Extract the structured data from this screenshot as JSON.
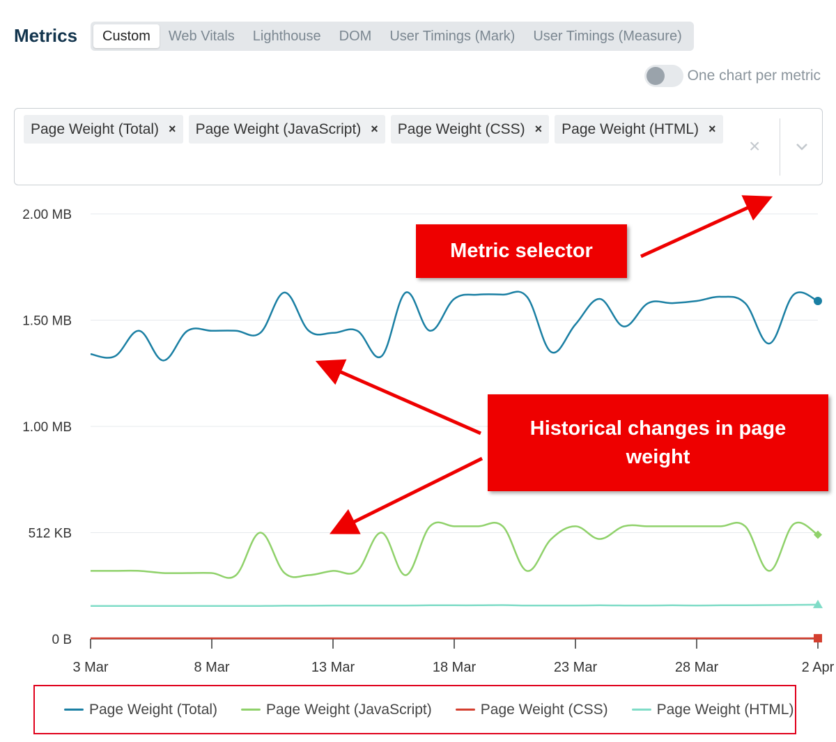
{
  "header": {
    "title": "Metrics",
    "tabs": [
      "Custom",
      "Web Vitals",
      "Lighthouse",
      "DOM",
      "User Timings (Mark)",
      "User Timings (Measure)"
    ],
    "active_tab": "Custom"
  },
  "toggle": {
    "label": "One chart per metric",
    "on": false
  },
  "selector": {
    "chips": [
      "Page Weight (Total)",
      "Page Weight (JavaScript)",
      "Page Weight (CSS)",
      "Page Weight (HTML)"
    ],
    "remove_glyph": "×",
    "clear_glyph": "×"
  },
  "annotations": {
    "metric_selector": "Metric selector",
    "history": "Historical changes in page weight"
  },
  "chart_data": {
    "type": "line",
    "ylim": [
      0,
      2
    ],
    "y_unit": "MB",
    "yticks": [
      {
        "value": 0,
        "label": "0 B"
      },
      {
        "value": 0.5,
        "label": "512 KB"
      },
      {
        "value": 1.0,
        "label": "1.00 MB"
      },
      {
        "value": 1.5,
        "label": "1.50 MB"
      },
      {
        "value": 2.0,
        "label": "2.00 MB"
      }
    ],
    "xticks": [
      "3 Mar",
      "8 Mar",
      "13 Mar",
      "18 Mar",
      "23 Mar",
      "28 Mar",
      "2 Apr"
    ],
    "x": [
      "3 Mar",
      "4 Mar",
      "5 Mar",
      "6 Mar",
      "7 Mar",
      "8 Mar",
      "9 Mar",
      "10 Mar",
      "11 Mar",
      "12 Mar",
      "13 Mar",
      "14 Mar",
      "15 Mar",
      "16 Mar",
      "17 Mar",
      "18 Mar",
      "19 Mar",
      "20 Mar",
      "21 Mar",
      "22 Mar",
      "23 Mar",
      "24 Mar",
      "25 Mar",
      "26 Mar",
      "27 Mar",
      "28 Mar",
      "29 Mar",
      "30 Mar",
      "31 Mar",
      "1 Apr",
      "2 Apr"
    ],
    "series": [
      {
        "name": "Page Weight (Total)",
        "color": "#1a7fa3",
        "marker": "circle",
        "values": [
          1.34,
          1.33,
          1.45,
          1.31,
          1.45,
          1.45,
          1.45,
          1.44,
          1.63,
          1.45,
          1.44,
          1.45,
          1.33,
          1.63,
          1.45,
          1.6,
          1.62,
          1.62,
          1.61,
          1.35,
          1.48,
          1.6,
          1.47,
          1.58,
          1.58,
          1.59,
          1.61,
          1.58,
          1.39,
          1.62,
          1.59
        ]
      },
      {
        "name": "Page Weight (JavaScript)",
        "color": "#8fd16a",
        "marker": "diamond",
        "values": [
          0.32,
          0.32,
          0.32,
          0.31,
          0.31,
          0.31,
          0.3,
          0.5,
          0.31,
          0.3,
          0.32,
          0.32,
          0.5,
          0.3,
          0.53,
          0.53,
          0.53,
          0.53,
          0.32,
          0.47,
          0.53,
          0.47,
          0.53,
          0.53,
          0.53,
          0.53,
          0.53,
          0.53,
          0.32,
          0.54,
          0.49
        ]
      },
      {
        "name": "Page Weight (CSS)",
        "color": "#d43f2f",
        "marker": "square",
        "values": [
          0.003,
          0.003,
          0.003,
          0.003,
          0.003,
          0.003,
          0.003,
          0.003,
          0.003,
          0.003,
          0.003,
          0.003,
          0.003,
          0.003,
          0.003,
          0.003,
          0.003,
          0.003,
          0.003,
          0.003,
          0.003,
          0.003,
          0.003,
          0.003,
          0.003,
          0.003,
          0.003,
          0.003,
          0.003,
          0.003,
          0.003
        ]
      },
      {
        "name": "Page Weight (HTML)",
        "color": "#7fdcc7",
        "marker": "triangle",
        "values": [
          0.155,
          0.155,
          0.155,
          0.155,
          0.155,
          0.155,
          0.155,
          0.155,
          0.156,
          0.156,
          0.157,
          0.157,
          0.157,
          0.157,
          0.158,
          0.158,
          0.158,
          0.159,
          0.157,
          0.157,
          0.157,
          0.158,
          0.157,
          0.157,
          0.158,
          0.157,
          0.158,
          0.158,
          0.159,
          0.16,
          0.161
        ]
      }
    ]
  }
}
